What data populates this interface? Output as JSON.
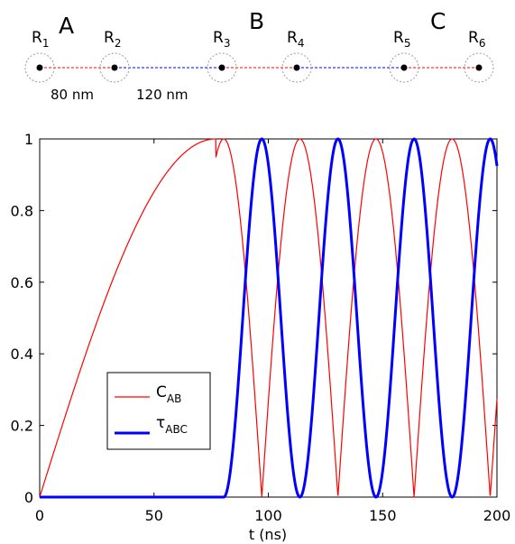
{
  "diagram": {
    "groups": [
      {
        "label": "A"
      },
      {
        "label": "B"
      },
      {
        "label": "C"
      }
    ],
    "nodes": [
      {
        "base": "R",
        "sub": "1"
      },
      {
        "base": "R",
        "sub": "2"
      },
      {
        "base": "R",
        "sub": "3"
      },
      {
        "base": "R",
        "sub": "4"
      },
      {
        "base": "R",
        "sub": "5"
      },
      {
        "base": "R",
        "sub": "6"
      }
    ],
    "distances": {
      "intra": {
        "text": "80 nm",
        "color": "#ff0000"
      },
      "inter": {
        "text": "120 nm",
        "color": "#0000ff"
      }
    }
  },
  "chart_data": {
    "type": "line",
    "title": "",
    "xlabel": "t (ns)",
    "ylabel": "",
    "xlim": [
      0,
      200
    ],
    "ylim": [
      0,
      1
    ],
    "xticks": [
      0,
      50,
      100,
      150,
      200
    ],
    "yticks": [
      0,
      0.2,
      0.4,
      0.6,
      0.8,
      1
    ],
    "grid": false,
    "legend_position": "lower-left",
    "series": [
      {
        "name_base": "C",
        "name_sub": "AB",
        "color": "#ff0000",
        "linewidth": "thin",
        "phases": [
          {
            "t_start": 0,
            "t_end": 77,
            "shape": "ramp",
            "from": 0,
            "to": 1
          },
          {
            "t_start": 77,
            "t_end": 200,
            "shape": "abs-cosine",
            "period_ns": 33.3,
            "peak_at": 80.5
          }
        ]
      },
      {
        "name_base": "τ",
        "name_sub": "ABC",
        "color": "#0000ff",
        "linewidth": "thick",
        "phases": [
          {
            "t_start": 0,
            "t_end": 80.5,
            "shape": "constant",
            "value": 0
          },
          {
            "t_start": 80.5,
            "t_end": 200,
            "shape": "sine-squared",
            "period_ns": 33.3,
            "start_at": 80.5
          }
        ]
      }
    ]
  }
}
